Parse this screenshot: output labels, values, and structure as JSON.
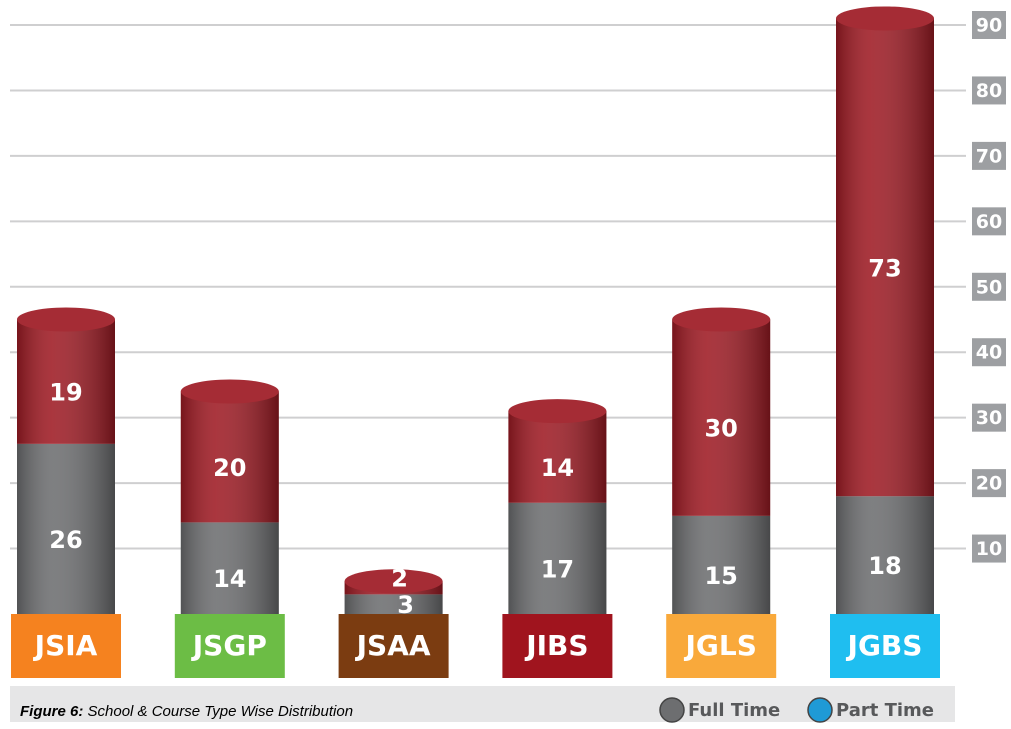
{
  "chart_data": {
    "type": "stacked_cylinder",
    "caption_label": "Figure 6:",
    "caption": "School & Course Type Wise Distribution",
    "categories": [
      "JSIA",
      "JSGP",
      "JSAA",
      "JIBS",
      "JGLS",
      "JGBS"
    ],
    "category_colors": [
      "#f5821f",
      "#6cbd45",
      "#7b3c11",
      "#a0141e",
      "#f9a93b",
      "#1fbef0"
    ],
    "series": [
      {
        "name": "Full Time",
        "color": "#6d6e70",
        "legend_color": "#6d6e70",
        "values": [
          26,
          14,
          3,
          17,
          15,
          18
        ]
      },
      {
        "name": "Part Time",
        "color": "#9e1b24",
        "legend_color": "#1f9ad6",
        "values": [
          19,
          20,
          2,
          14,
          30,
          73
        ]
      }
    ],
    "ylim": [
      0,
      90
    ],
    "yticks": [
      10,
      20,
      30,
      40,
      50,
      60,
      70,
      80,
      90
    ],
    "grid": true
  }
}
